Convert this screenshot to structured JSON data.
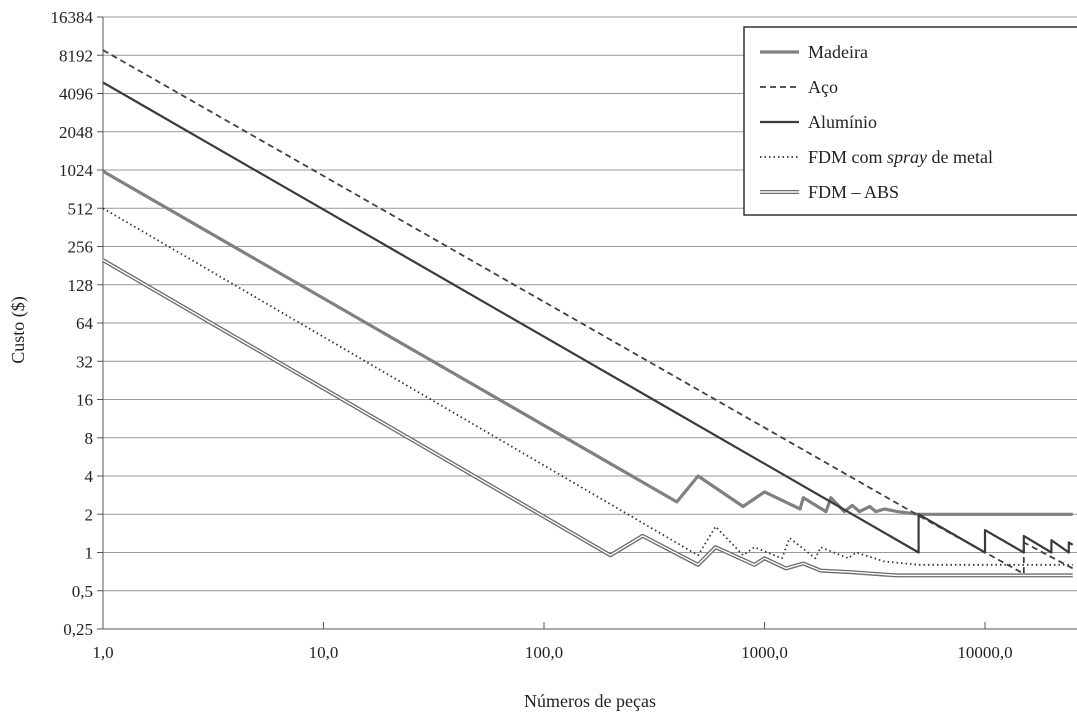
{
  "chart_data": {
    "type": "line",
    "title": "",
    "xlabel": "Números de peças",
    "ylabel": "Custo ($)",
    "x_scale": "log10",
    "y_scale": "log2",
    "xlim": [
      1,
      25000
    ],
    "ylim": [
      0.25,
      16384
    ],
    "x_ticks": [
      1,
      10,
      100,
      1000,
      10000
    ],
    "x_tick_labels": [
      "1,0",
      "10,0",
      "100,0",
      "1000,0",
      "10000,0"
    ],
    "y_ticks": [
      0.25,
      0.5,
      1,
      2,
      4,
      8,
      16,
      32,
      64,
      128,
      256,
      512,
      1024,
      2048,
      4096,
      8192,
      16384
    ],
    "y_tick_labels": [
      "0,25",
      "0,5",
      "1",
      "2",
      "4",
      "8",
      "16",
      "32",
      "64",
      "128",
      "256",
      "512",
      "1024",
      "2048",
      "4096",
      "8192",
      "16384"
    ],
    "grid": "horizontal",
    "legend_position": "top-right",
    "series": [
      {
        "name": "Madeira",
        "style": "solid-thick",
        "color": "#808080",
        "x": [
          1,
          400,
          500,
          800,
          1000,
          1450,
          1500,
          1900,
          2000,
          2300,
          2500,
          2700,
          3000,
          3200,
          3500,
          4000,
          5000,
          25000
        ],
        "y": [
          1000,
          2.5,
          4,
          2.3,
          3,
          2.2,
          2.7,
          2.1,
          2.7,
          2.1,
          2.35,
          2.1,
          2.3,
          2.1,
          2.2,
          2.1,
          2,
          2
        ]
      },
      {
        "name": "Aço",
        "style": "dashed",
        "color": "#404040",
        "x": [
          1,
          5000,
          15000,
          15000,
          25000
        ],
        "y": [
          9000,
          1.95,
          0.68,
          1.2,
          0.75
        ]
      },
      {
        "name": "Alumínio",
        "style": "solid",
        "color": "#3a3a3a",
        "x": [
          1,
          5000,
          5000,
          10000,
          10000,
          15000,
          15000,
          20000,
          20000,
          24000,
          24000,
          25000
        ],
        "y": [
          5000,
          1,
          2,
          1,
          1.5,
          1,
          1.35,
          1,
          1.25,
          1,
          1.2,
          1.15
        ]
      },
      {
        "name": "FDM com spray de metal",
        "style": "dotted",
        "color": "#333333",
        "x": [
          1,
          500,
          600,
          800,
          900,
          1200,
          1300,
          1700,
          1800,
          2400,
          2600,
          3500,
          5000,
          25000
        ],
        "y": [
          512,
          0.95,
          1.6,
          0.95,
          1.1,
          0.9,
          1.3,
          0.9,
          1.1,
          0.9,
          1.0,
          0.85,
          0.8,
          0.8
        ]
      },
      {
        "name": "FDM – ABS",
        "style": "double",
        "color": "#6a6a6a",
        "x": [
          1,
          200,
          280,
          500,
          600,
          900,
          1000,
          1250,
          1500,
          1800,
          2500,
          3500,
          4000,
          25000
        ],
        "y": [
          200,
          0.95,
          1.35,
          0.8,
          1.1,
          0.8,
          0.9,
          0.75,
          0.82,
          0.72,
          0.7,
          0.67,
          0.66,
          0.66
        ]
      }
    ]
  },
  "legend": {
    "items": [
      {
        "label": "Madeira",
        "style": "solid-thick"
      },
      {
        "label": "Aço",
        "style": "dashed"
      },
      {
        "label": "Alumínio",
        "style": "solid"
      },
      {
        "label_parts": [
          "FDM com ",
          "spray",
          " de metal"
        ],
        "style": "dotted"
      },
      {
        "label": "FDM – ABS",
        "style": "double"
      }
    ]
  }
}
